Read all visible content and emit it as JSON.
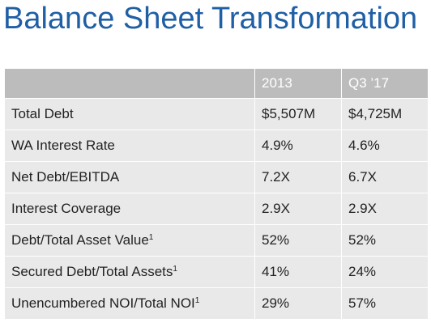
{
  "title": "Balance Sheet Transformation",
  "table": {
    "headers": [
      "",
      "2013",
      "Q3 ’17"
    ],
    "rows": [
      {
        "metric": "Total Debt",
        "footnote": "",
        "v2013": "$5,507M",
        "vq3": "$4,725M"
      },
      {
        "metric": "WA Interest Rate",
        "footnote": "",
        "v2013": "4.9%",
        "vq3": "4.6%"
      },
      {
        "metric": "Net Debt/EBITDA",
        "footnote": "",
        "v2013": "7.2X",
        "vq3": "6.7X"
      },
      {
        "metric": "Interest Coverage",
        "footnote": "",
        "v2013": "2.9X",
        "vq3": "2.9X"
      },
      {
        "metric": "Debt/Total Asset Value",
        "footnote": "1",
        "v2013": "52%",
        "vq3": "52%"
      },
      {
        "metric": "Secured Debt/Total Assets",
        "footnote": "1",
        "v2013": "41%",
        "vq3": "24%"
      },
      {
        "metric": "Unencumbered NOI/Total NOI",
        "footnote": "1",
        "v2013": "29%",
        "vq3": "57%"
      }
    ]
  },
  "colors": {
    "title": "#1f5fa6",
    "header_bg": "#bcbcbc",
    "header_text": "#ffffff",
    "row_bg": "#e9e9e9"
  }
}
